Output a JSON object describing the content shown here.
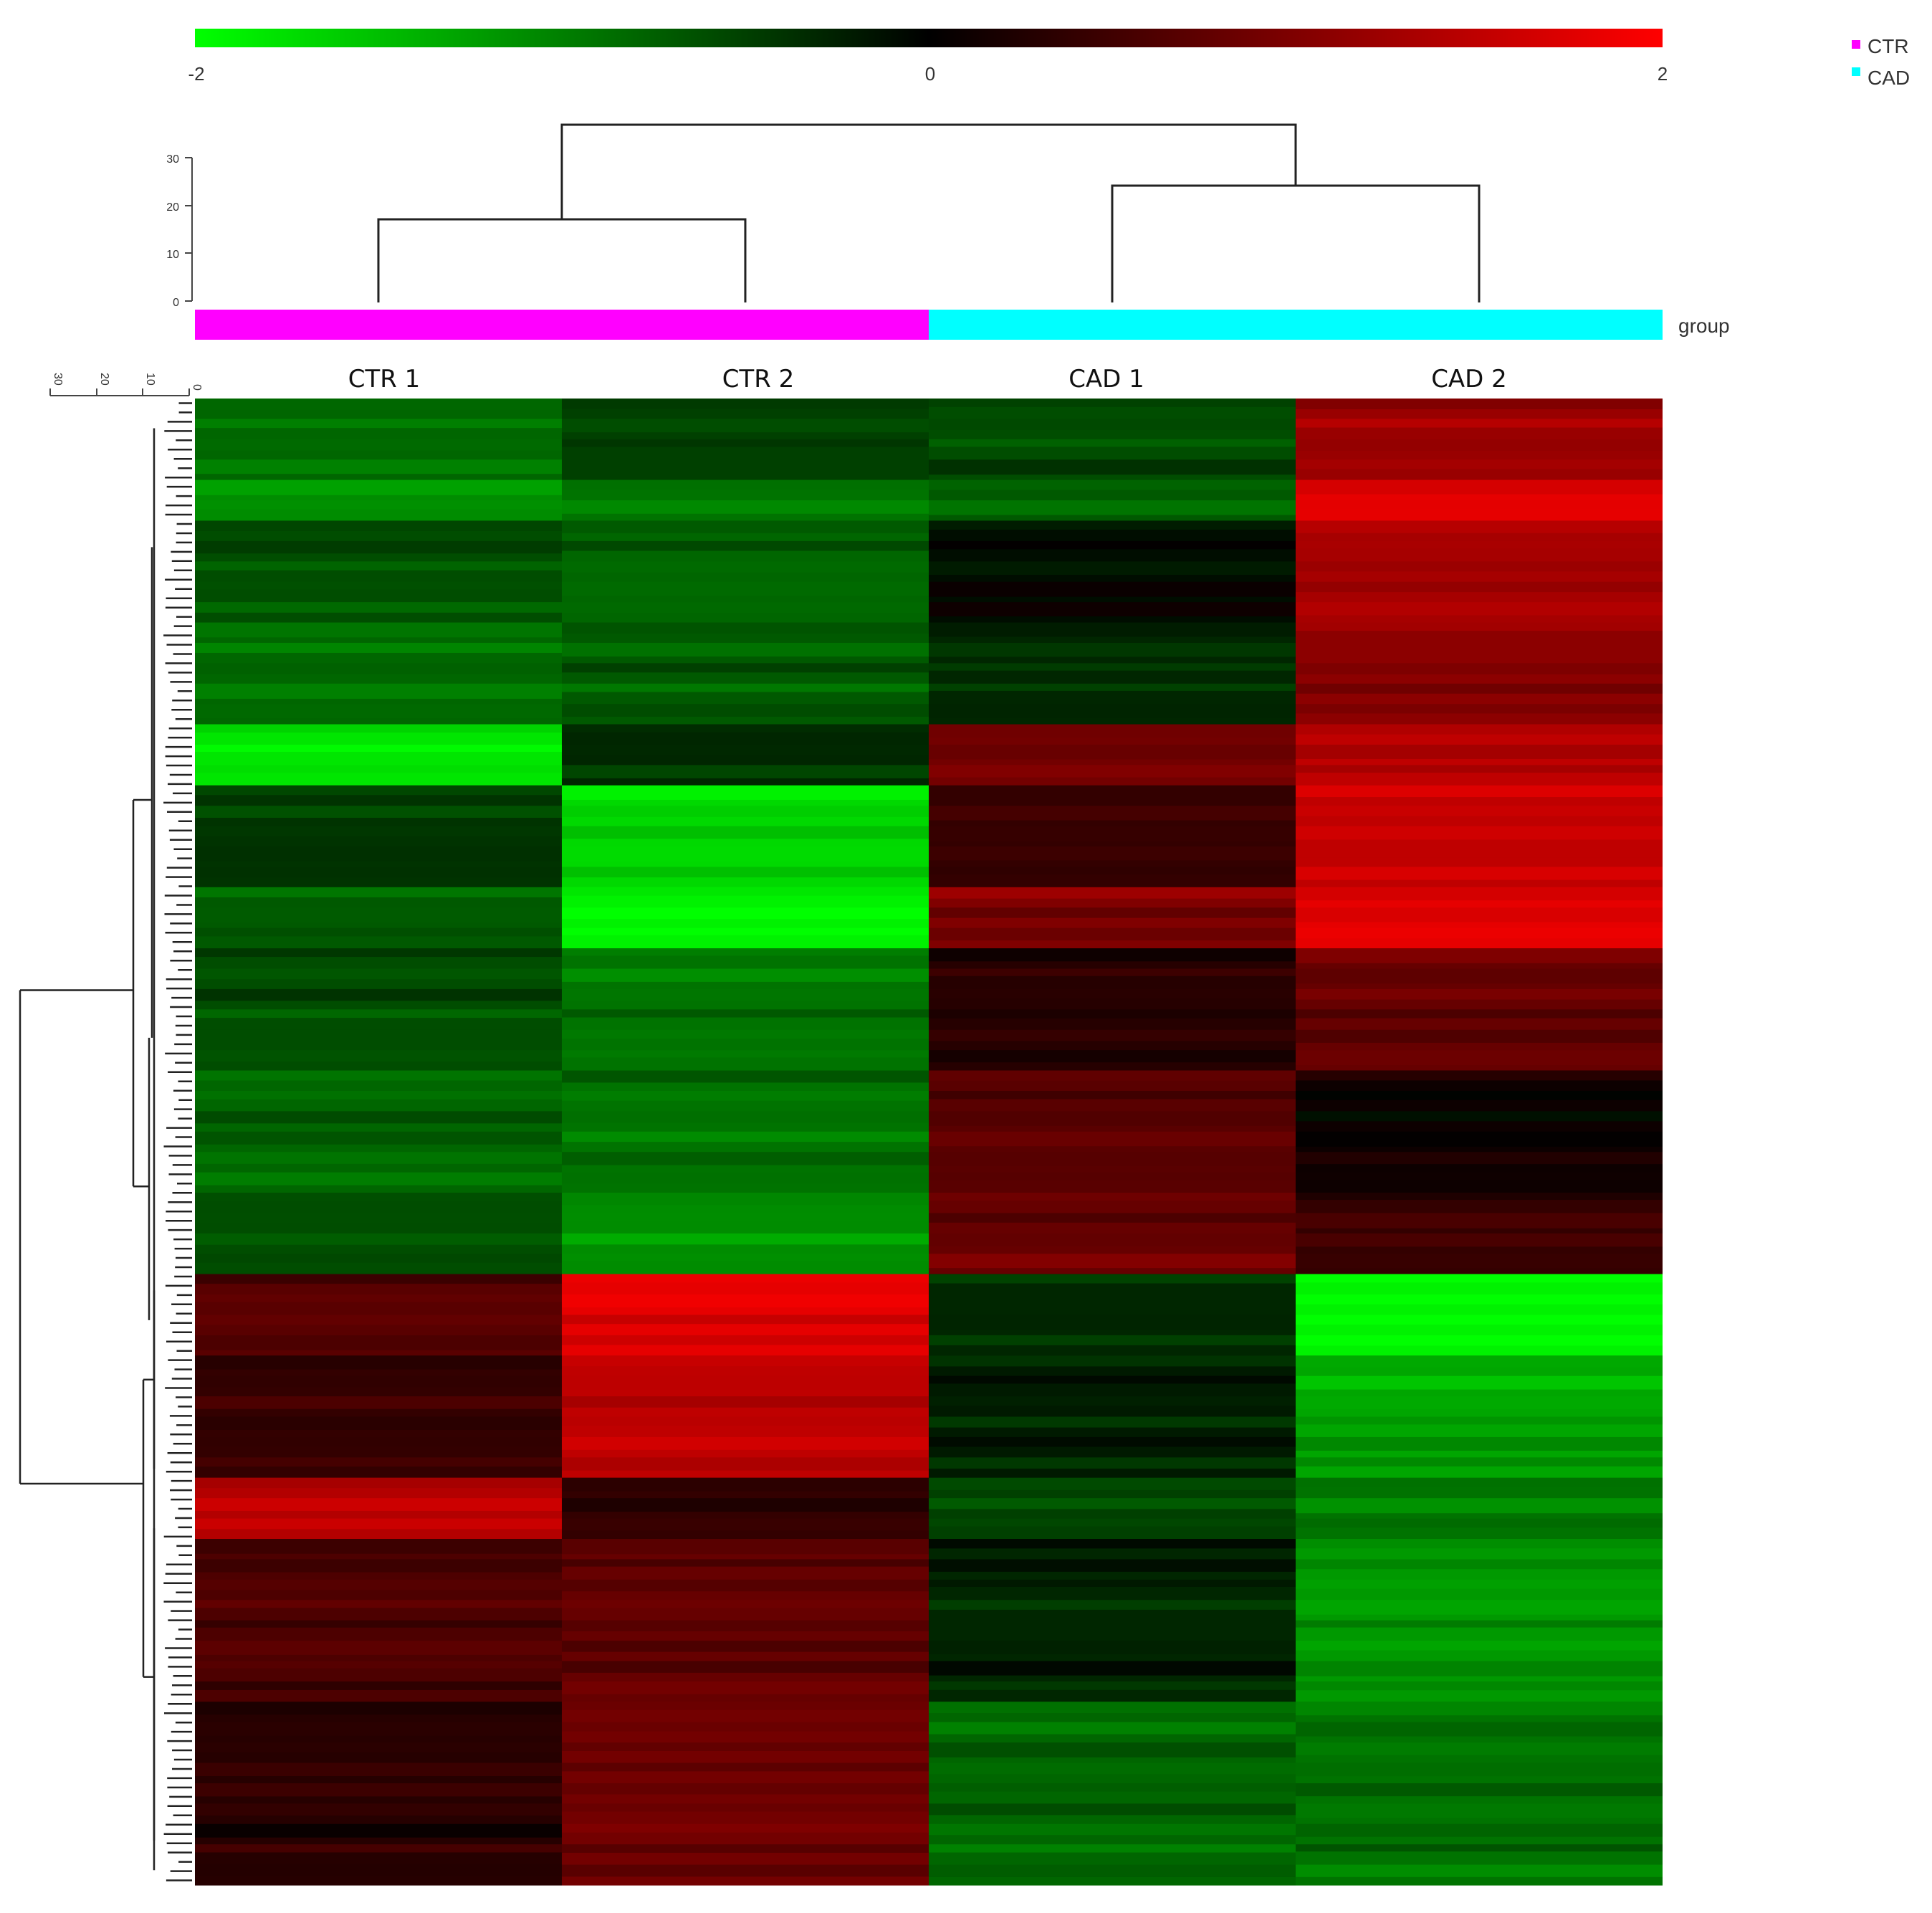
{
  "chart_data": {
    "type": "heatmap",
    "title": "",
    "color_scale": {
      "min": -2,
      "mid": 0,
      "max": 2,
      "low_color": "#00ff00",
      "mid_color": "#000000",
      "high_color": "#ff0000",
      "tick_labels": [
        "-2",
        "0",
        "2"
      ]
    },
    "columns": [
      "CTR 1",
      "CTR 2",
      "CAD 1",
      "CAD 2"
    ],
    "column_groups": [
      "CTR",
      "CTR",
      "CAD",
      "CAD"
    ],
    "group_bar_label": "group",
    "legend": [
      {
        "name": "CTR",
        "color": "#ff00ff"
      },
      {
        "name": "CAD",
        "color": "#00ffff"
      }
    ],
    "column_dendrogram": {
      "axis_ticks": [
        "0",
        "10",
        "20",
        "30"
      ],
      "axis_range": [
        0,
        30
      ],
      "merges": [
        {
          "name": "CTR 1 + CTR 2",
          "height": 17.5
        },
        {
          "name": "CAD 1 + CAD 2",
          "height": 24.5
        },
        {
          "name": "root",
          "height": 37
        }
      ]
    },
    "row_dendrogram": {
      "axis_ticks": [
        "0",
        "10",
        "20",
        "30"
      ],
      "axis_range": [
        0,
        30
      ]
    },
    "row_blocks": [
      {
        "rows": 20,
        "values": [
          -0.8,
          -0.5,
          -0.6,
          1.2
        ]
      },
      {
        "rows": 10,
        "values": [
          -1.1,
          -0.9,
          -0.7,
          1.8
        ]
      },
      {
        "rows": 25,
        "values": [
          -0.6,
          -0.8,
          -0.1,
          1.3
        ]
      },
      {
        "rows": 25,
        "values": [
          -0.8,
          -0.7,
          -0.3,
          1.1
        ]
      },
      {
        "rows": 15,
        "values": [
          -1.8,
          -0.3,
          0.9,
          1.5
        ]
      },
      {
        "rows": 25,
        "values": [
          -0.4,
          -1.7,
          0.4,
          1.5
        ]
      },
      {
        "rows": 15,
        "values": [
          -0.7,
          -1.9,
          1.0,
          1.8
        ]
      },
      {
        "rows": 30,
        "values": [
          -0.6,
          -0.9,
          0.3,
          0.8
        ]
      },
      {
        "rows": 30,
        "values": [
          -0.8,
          -0.9,
          0.7,
          0.1
        ]
      },
      {
        "rows": 20,
        "values": [
          -0.6,
          -1.1,
          0.8,
          0.4
        ]
      },
      {
        "rows": 20,
        "values": [
          0.7,
          1.8,
          -0.3,
          -1.9
        ]
      },
      {
        "rows": 30,
        "values": [
          0.4,
          1.5,
          -0.2,
          -1.3
        ]
      },
      {
        "rows": 15,
        "values": [
          1.4,
          0.4,
          -0.5,
          -0.9
        ]
      },
      {
        "rows": 40,
        "values": [
          0.6,
          0.8,
          -0.3,
          -1.2
        ]
      },
      {
        "rows": 45,
        "values": [
          0.3,
          0.9,
          -0.8,
          -0.9
        ]
      }
    ]
  }
}
